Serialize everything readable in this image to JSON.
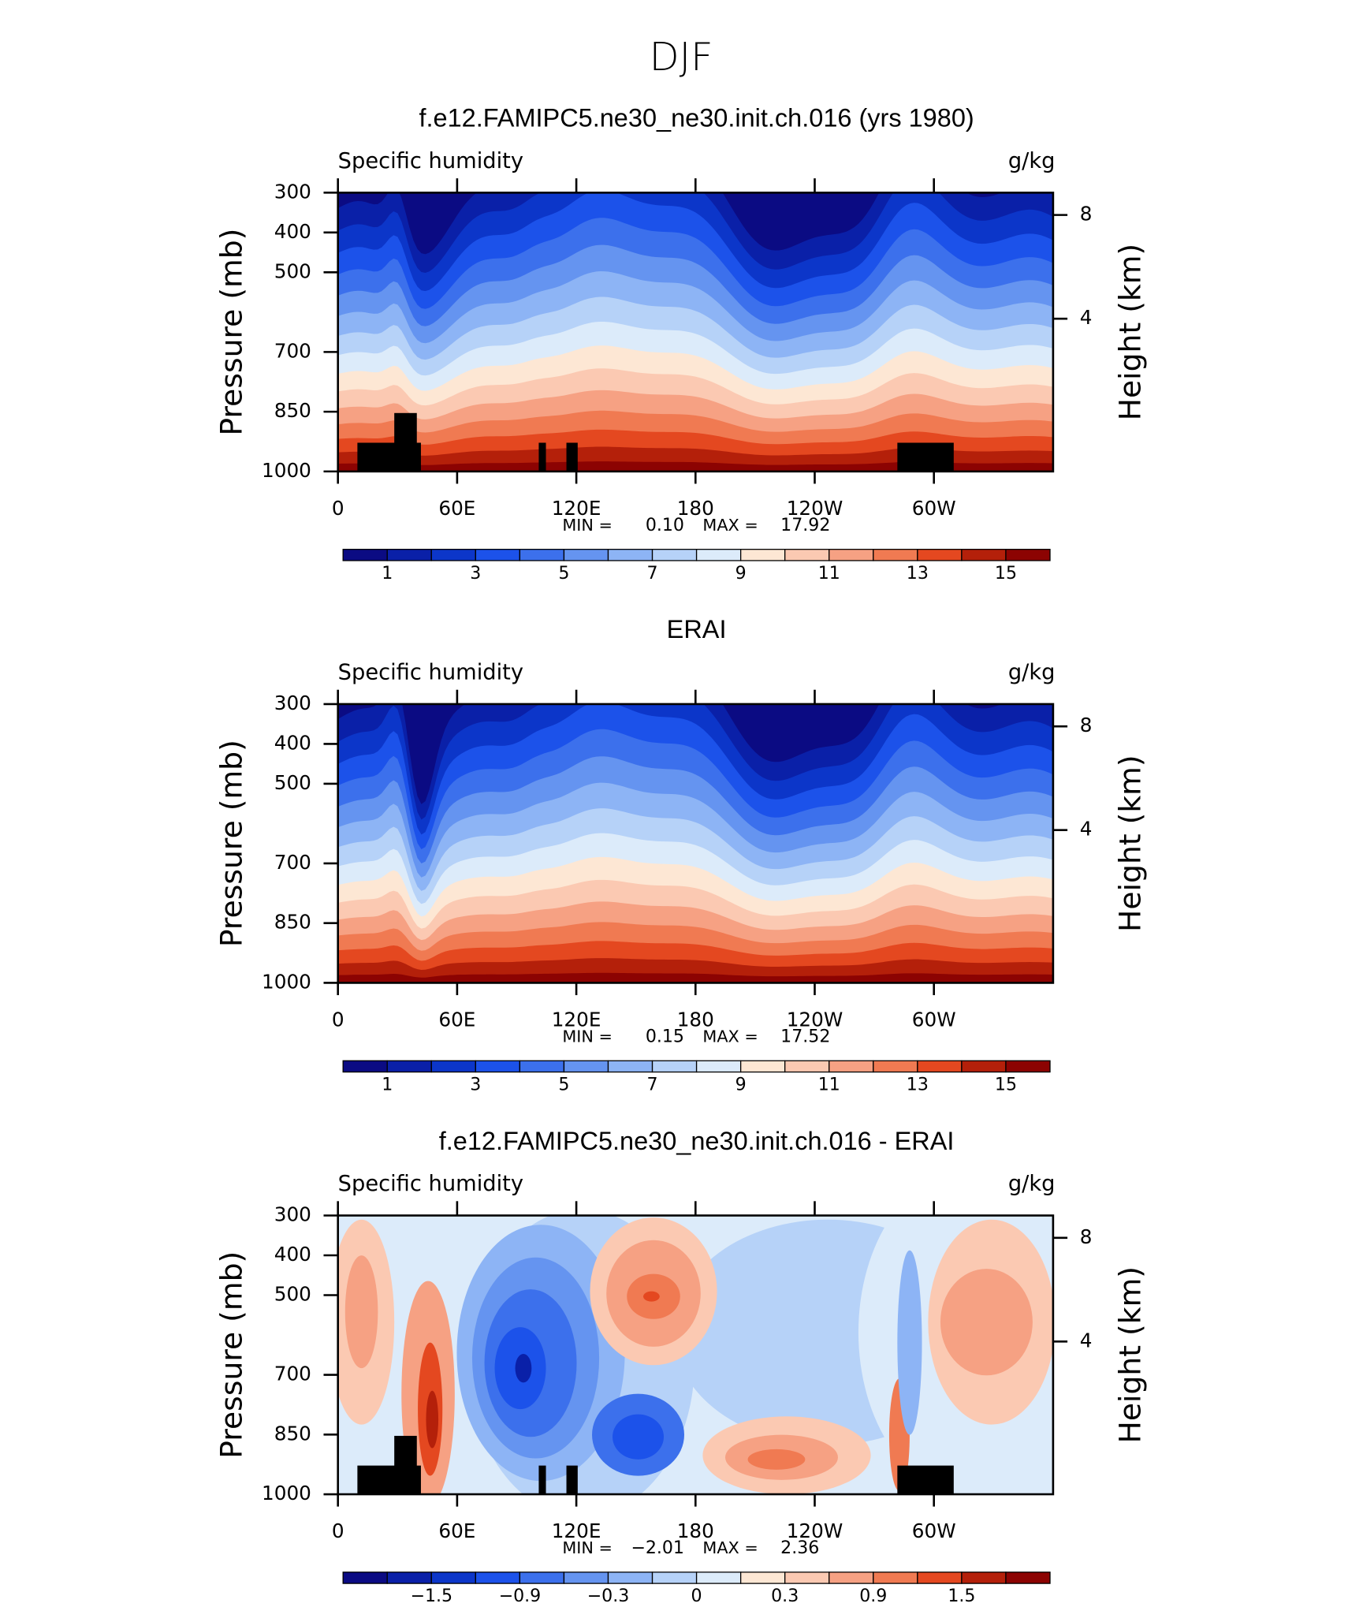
{
  "figure_title": "DJF",
  "chart_data": [
    {
      "type": "contour",
      "title": "f.e12.FAMIPC5.ne30_ne30.init.ch.016 (yrs 1980)",
      "subtitle_left": "Specific humidity",
      "subtitle_right": "g/kg",
      "ylabel": "Pressure (mb)",
      "y2label": "Height (km)",
      "xlim": [
        0,
        360
      ],
      "xticks": [
        0,
        {
          "value": 60,
          "label": "60E"
        },
        {
          "value": 120,
          "label": "120E"
        },
        180,
        {
          "value": 240,
          "label": "120W"
        },
        {
          "value": 300,
          "label": "60W"
        }
      ],
      "ylim": [
        1000,
        300
      ],
      "yticks": [
        300,
        400,
        500,
        700,
        850,
        1000
      ],
      "y2ticks": [
        4,
        8
      ],
      "stats": {
        "min_text": "MIN =",
        "min": {
          "value": 0.1,
          "label": "0.10"
        },
        "max_text": "MAX =",
        "max": {
          "value": 17.92,
          "label": "17.92"
        }
      },
      "levels": [
        1,
        2,
        3,
        4,
        5,
        6,
        7,
        8,
        9,
        10,
        11,
        12,
        13,
        14,
        15
      ],
      "colors": [
        "#0b0b83",
        "#0a20a8",
        "#0c36c9",
        "#1c52ea",
        "#3c70ec",
        "#6594f0",
        "#8db4f5",
        "#b6d2f8",
        "#dcebfa",
        "#fde7d4",
        "#fbc9b2",
        "#f6a183",
        "#f07a52",
        "#e44820",
        "#b4200a",
        "#8c0302"
      ],
      "colorbar_ticks": [
        1,
        3,
        5,
        7,
        9,
        11,
        13,
        15
      ]
    },
    {
      "type": "contour",
      "title": "ERAI",
      "subtitle_left": "Specific humidity",
      "subtitle_right": "g/kg",
      "ylabel": "Pressure (mb)",
      "y2label": "Height (km)",
      "xlim": [
        0,
        360
      ],
      "xticks": [
        0,
        {
          "value": 60,
          "label": "60E"
        },
        {
          "value": 120,
          "label": "120E"
        },
        180,
        {
          "value": 240,
          "label": "120W"
        },
        {
          "value": 300,
          "label": "60W"
        }
      ],
      "ylim": [
        1000,
        300
      ],
      "yticks": [
        300,
        400,
        500,
        700,
        850,
        1000
      ],
      "y2ticks": [
        4,
        8
      ],
      "stats": {
        "min_text": "MIN =",
        "min": {
          "value": 0.15,
          "label": "0.15"
        },
        "max_text": "MAX =",
        "max": {
          "value": 17.52,
          "label": "17.52"
        }
      },
      "levels": [
        1,
        2,
        3,
        4,
        5,
        6,
        7,
        8,
        9,
        10,
        11,
        12,
        13,
        14,
        15
      ],
      "colors": [
        "#0b0b83",
        "#0a20a8",
        "#0c36c9",
        "#1c52ea",
        "#3c70ec",
        "#6594f0",
        "#8db4f5",
        "#b6d2f8",
        "#dcebfa",
        "#fde7d4",
        "#fbc9b2",
        "#f6a183",
        "#f07a52",
        "#e44820",
        "#b4200a",
        "#8c0302"
      ],
      "colorbar_ticks": [
        1,
        3,
        5,
        7,
        9,
        11,
        13,
        15
      ]
    },
    {
      "type": "contour",
      "title": "f.e12.FAMIPC5.ne30_ne30.init.ch.016 - ERAI",
      "subtitle_left": "Specific humidity",
      "subtitle_right": "g/kg",
      "ylabel": "Pressure (mb)",
      "y2label": "Height (km)",
      "xlim": [
        0,
        360
      ],
      "xticks": [
        0,
        {
          "value": 60,
          "label": "60E"
        },
        {
          "value": 120,
          "label": "120E"
        },
        180,
        {
          "value": 240,
          "label": "120W"
        },
        {
          "value": 300,
          "label": "60W"
        }
      ],
      "ylim": [
        1000,
        300
      ],
      "yticks": [
        300,
        400,
        500,
        700,
        850,
        1000
      ],
      "y2ticks": [
        4,
        8
      ],
      "stats": {
        "min_text": "MIN =",
        "min": {
          "value": -2.01,
          "label": "−2.01"
        },
        "max_text": "MAX =",
        "max": {
          "value": 2.36,
          "label": "2.36"
        }
      },
      "levels": [
        -1.8,
        -1.5,
        -1.2,
        -0.9,
        -0.6,
        -0.3,
        -0.1,
        0,
        0.1,
        0.3,
        0.6,
        0.9,
        1.2,
        1.5,
        1.8
      ],
      "colors": [
        "#0b0b83",
        "#0a20a8",
        "#0c36c9",
        "#1c52ea",
        "#3c70ec",
        "#6594f0",
        "#8db4f5",
        "#b6d2f8",
        "#dcebfa",
        "#fde7d4",
        "#fbc9b2",
        "#f6a183",
        "#f07a52",
        "#e44820",
        "#b4200a",
        "#8c0302"
      ],
      "colorbar_ticks": [
        {
          "value": -1.5,
          "label": "−1.5"
        },
        {
          "value": -0.9,
          "label": "−0.9"
        },
        {
          "value": -0.3,
          "label": "−0.3"
        },
        0,
        0.3,
        0.9,
        1.5
      ]
    }
  ]
}
